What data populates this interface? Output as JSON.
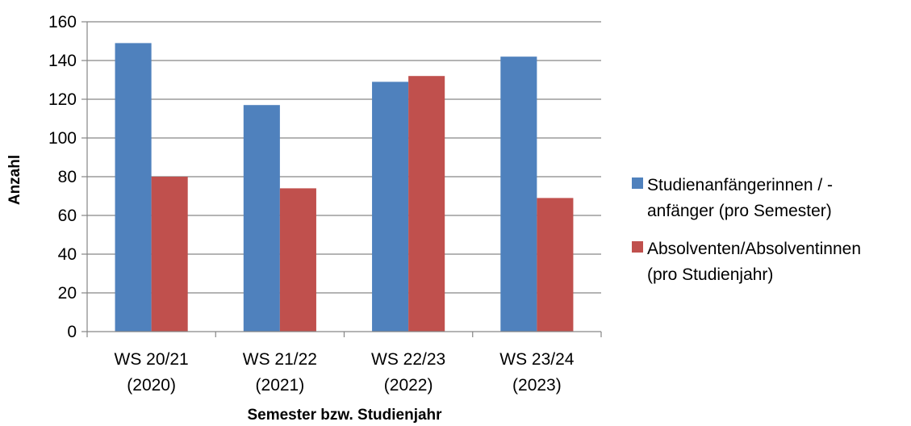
{
  "chart_data": {
    "type": "bar",
    "title": "",
    "xlabel": "Semester bzw. Studienjahr",
    "ylabel": "Anzahl",
    "ylim": [
      0,
      160
    ],
    "ytick_step": 20,
    "grid": true,
    "legend_position": "right",
    "categories": [
      [
        "WS 20/21",
        "(2020)"
      ],
      [
        "WS 21/22",
        "(2021)"
      ],
      [
        "WS 22/23",
        "(2022)"
      ],
      [
        "WS 23/24",
        "(2023)"
      ]
    ],
    "series": [
      {
        "name": [
          "Studienanfängerinnen / -",
          "anfänger (pro Semester)"
        ],
        "color": "#4f81bd",
        "values": [
          149,
          117,
          129,
          142
        ]
      },
      {
        "name": [
          "Absolventen/Absolventinnen",
          "(pro Studienjahr)"
        ],
        "color": "#c0504d",
        "values": [
          80,
          74,
          132,
          69
        ]
      }
    ]
  }
}
